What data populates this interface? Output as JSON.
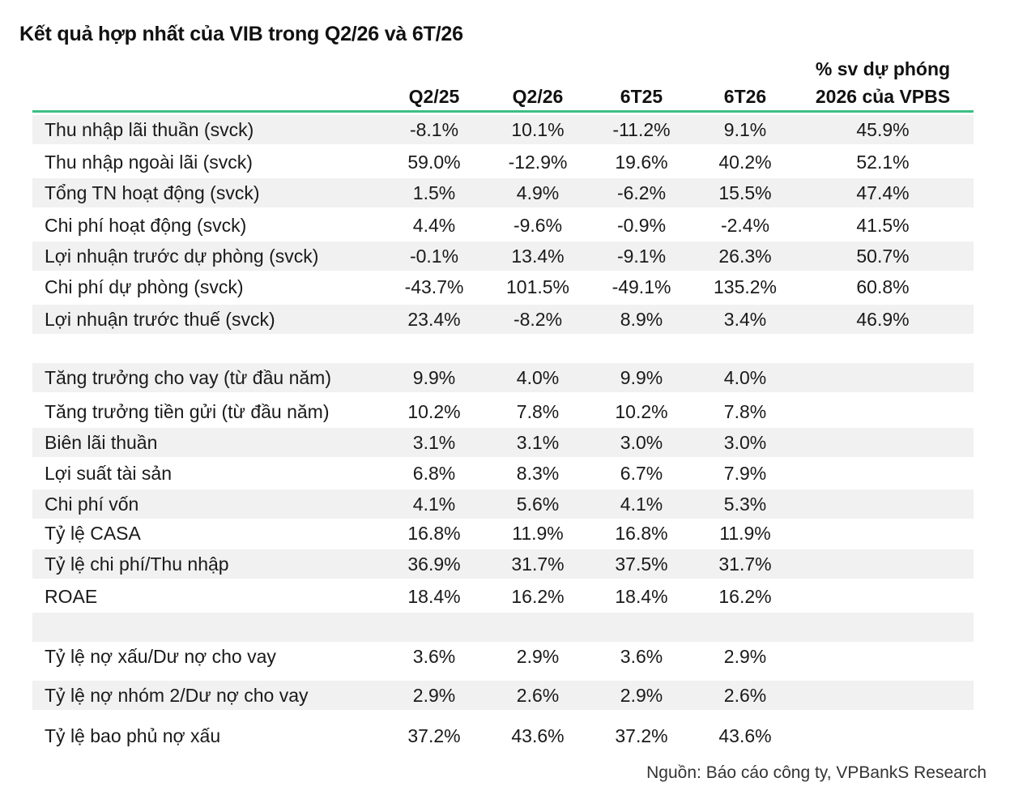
{
  "title": "Kết quả hợp nhất của VIB trong Q2/26 và 6T/26",
  "headers": {
    "q2_25": "Q2/25",
    "q2_26": "Q2/26",
    "h6t25": "6T25",
    "h6t26": "6T26",
    "forecast_line1": "% sv dự phóng",
    "forecast_line2": "2026 của VPBS"
  },
  "rows": [
    {
      "label": "Thu nhập lãi thuần (svck)",
      "v": [
        "-8.1%",
        "10.1%",
        "-11.2%",
        "9.1%",
        "45.9%"
      ]
    },
    {
      "label": "Thu nhập ngoài lãi (svck)",
      "v": [
        "59.0%",
        "-12.9%",
        "19.6%",
        "40.2%",
        "52.1%"
      ]
    },
    {
      "label": "Tổng TN hoạt động (svck)",
      "v": [
        "1.5%",
        "4.9%",
        "-6.2%",
        "15.5%",
        "47.4%"
      ]
    },
    {
      "label": "Chi phí hoạt động (svck)",
      "v": [
        "4.4%",
        "-9.6%",
        "-0.9%",
        "-2.4%",
        "41.5%"
      ]
    },
    {
      "label": "Lợi nhuận trước dự phòng (svck)",
      "v": [
        "-0.1%",
        "13.4%",
        "-9.1%",
        "26.3%",
        "50.7%"
      ]
    },
    {
      "label": "Chi phí dự phòng (svck)",
      "v": [
        "-43.7%",
        "101.5%",
        "-49.1%",
        "135.2%",
        "60.8%"
      ]
    },
    {
      "label": "Lợi nhuận trước thuế (svck)",
      "v": [
        "23.4%",
        "-8.2%",
        "8.9%",
        "3.4%",
        "46.9%"
      ]
    },
    {
      "label": "",
      "v": [
        "",
        "",
        "",
        "",
        ""
      ]
    },
    {
      "label": "Tăng trưởng cho vay (từ đầu năm)",
      "v": [
        "9.9%",
        "4.0%",
        "9.9%",
        "4.0%",
        ""
      ]
    },
    {
      "label": "Tăng trưởng tiền gửi (từ đầu năm)",
      "v": [
        "10.2%",
        "7.8%",
        "10.2%",
        "7.8%",
        ""
      ]
    },
    {
      "label": "Biên lãi thuần",
      "v": [
        "3.1%",
        "3.1%",
        "3.0%",
        "3.0%",
        ""
      ]
    },
    {
      "label": "Lợi suất tài sản",
      "v": [
        "6.8%",
        "8.3%",
        "6.7%",
        "7.9%",
        ""
      ]
    },
    {
      "label": "Chi phí vốn",
      "v": [
        "4.1%",
        "5.6%",
        "4.1%",
        "5.3%",
        ""
      ]
    },
    {
      "label": "Tỷ lệ CASA",
      "v": [
        "16.8%",
        "11.9%",
        "16.8%",
        "11.9%",
        ""
      ]
    },
    {
      "label": "Tỷ lệ chi phí/Thu nhập",
      "v": [
        "36.9%",
        "31.7%",
        "37.5%",
        "31.7%",
        ""
      ]
    },
    {
      "label": "ROAE",
      "v": [
        "18.4%",
        "16.2%",
        "18.4%",
        "16.2%",
        ""
      ]
    },
    {
      "label": "",
      "v": [
        "",
        "",
        "",
        "",
        ""
      ]
    },
    {
      "label": "Tỷ lệ nợ xấu/Dư nợ cho vay",
      "v": [
        "3.6%",
        "2.9%",
        "3.6%",
        "2.9%",
        ""
      ]
    },
    {
      "label": "Tỷ lệ nợ nhóm 2/Dư nợ cho vay",
      "v": [
        "2.9%",
        "2.6%",
        "2.9%",
        "2.6%",
        ""
      ]
    },
    {
      "label": "Tỷ lệ bao phủ nợ xấu",
      "v": [
        "37.2%",
        "43.6%",
        "37.2%",
        "43.6%",
        ""
      ]
    }
  ],
  "source": "Nguồn: Báo cáo công ty, VPBankS Research",
  "colors": {
    "accent_line": "#3dbf85",
    "shade": "#f1f1f1"
  }
}
